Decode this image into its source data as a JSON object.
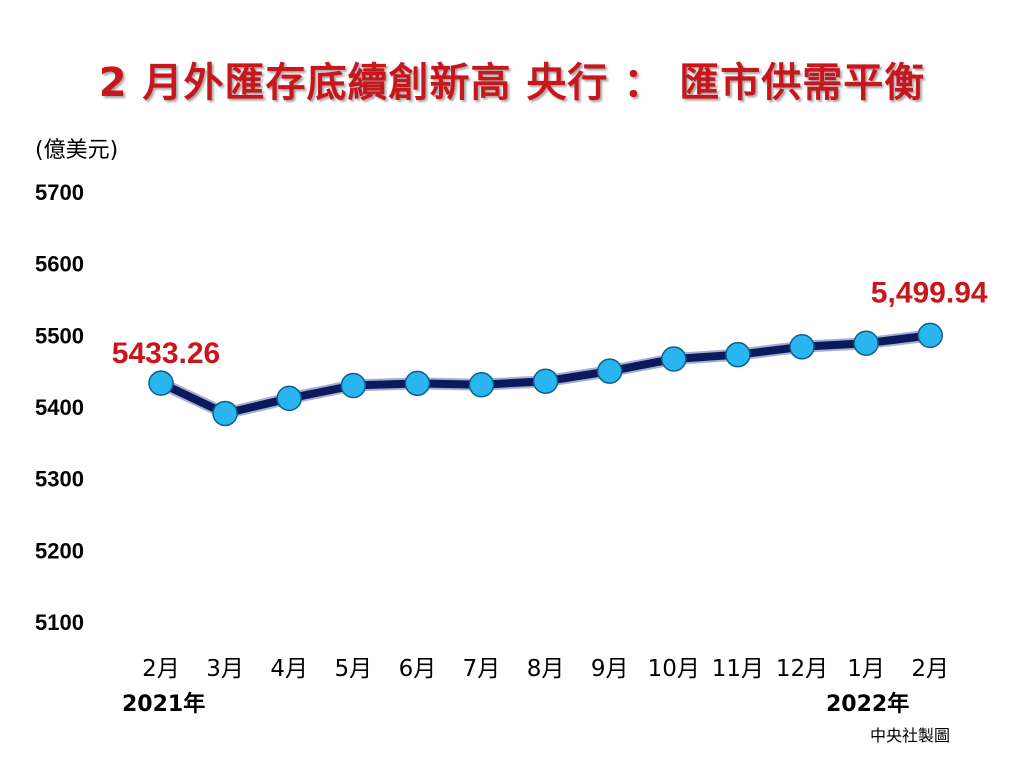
{
  "chart_data": {
    "type": "line",
    "title": "2 月外匯存底續創新高 央行 ： 匯市供需平衡",
    "unit_label": "(億美元)",
    "categories": [
      "2月",
      "3月",
      "4月",
      "5月",
      "6月",
      "7月",
      "8月",
      "9月",
      "10月",
      "11月",
      "12月",
      "1月",
      "2月"
    ],
    "year_labels": [
      "2021年",
      "2022年"
    ],
    "series": [
      {
        "values": [
          5433.26,
          5391,
          5412,
          5430,
          5433,
          5431,
          5436,
          5450,
          5467,
          5473,
          5484,
          5489,
          5499.94
        ]
      }
    ],
    "ylim": [
      5100,
      5700
    ],
    "yticks": [
      5700,
      5600,
      5500,
      5400,
      5300,
      5200,
      5100
    ],
    "data_labels": [
      {
        "index": 0,
        "text": "5433.26"
      },
      {
        "index": 12,
        "text": "5,499.94"
      }
    ],
    "grid": false,
    "colors": {
      "line": "#0a1a5c",
      "marker": "#29b6f0",
      "title": "#c8161d",
      "data_label": "#c8161d"
    }
  },
  "credit": "中央社製圖"
}
